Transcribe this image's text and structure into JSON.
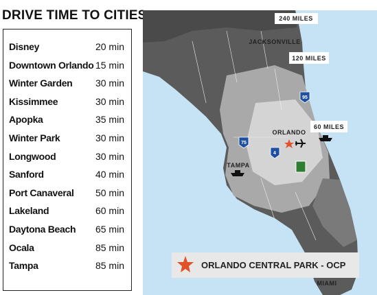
{
  "title": "DRIVE TIME TO CITIES",
  "table": {
    "rows": [
      [
        "Disney",
        "20 min"
      ],
      [
        "Downtown Orlando",
        "15 min"
      ],
      [
        "Winter Garden",
        "30 min"
      ],
      [
        "Kissimmee",
        "30 min"
      ],
      [
        "Apopka",
        "35 min"
      ],
      [
        "Winter Park",
        "30 min"
      ],
      [
        "Longwood",
        "30 min"
      ],
      [
        "Sanford",
        "40 min"
      ],
      [
        "Port Canaveral",
        "50 min"
      ],
      [
        "Lakeland",
        "60 min"
      ],
      [
        "Daytona Beach",
        "65 min"
      ],
      [
        "Ocala",
        "85 min"
      ],
      [
        "Tampa",
        "85 min"
      ]
    ]
  },
  "map": {
    "labels": [
      "240 MILES",
      "JACKSONVILLE",
      "120 MILES",
      "ORLANDO",
      "60 MILES",
      "TAMPA",
      "MIAMI"
    ],
    "shields": [
      "95",
      "75",
      "4"
    ],
    "legend": "ORLANDO CENTRAL PARK - OCP"
  }
}
